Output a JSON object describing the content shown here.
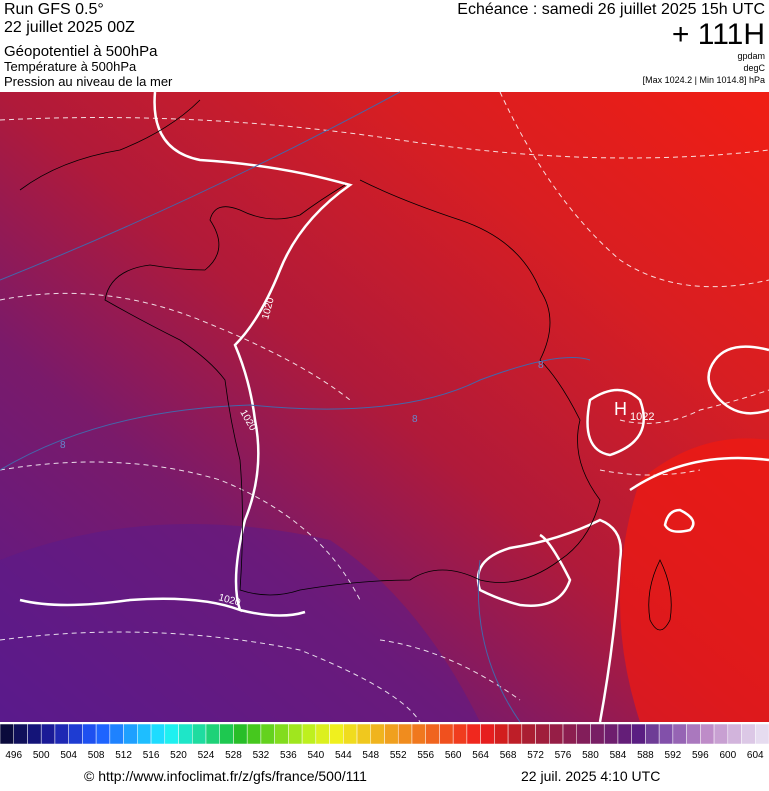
{
  "header": {
    "left": [
      "Run GFS 0.5°",
      "22 juillet 2025 00Z",
      "Géopotentiel à 500hPa",
      "Température à 500hPa",
      "Pression au niveau de la mer"
    ],
    "right_title": "Echéance : samedi 26 juillet 2025 15h UTC",
    "lead": "+ 111H",
    "units": [
      "gpdam",
      "degC",
      "[Max 1024.2 | Min 1014.8] hPa"
    ]
  },
  "map": {
    "labels": [
      "1020",
      "1020",
      "1020",
      "1022",
      "H",
      "8",
      "8",
      "8"
    ]
  },
  "colorbar": {
    "ticks": [
      496,
      500,
      504,
      508,
      512,
      516,
      520,
      524,
      528,
      532,
      536,
      540,
      544,
      548,
      552,
      556,
      560,
      564,
      568,
      572,
      576,
      580,
      584,
      588,
      592,
      596,
      600,
      604
    ],
    "colors": [
      "#0a0a3c",
      "#10105a",
      "#141478",
      "#1a1a96",
      "#1e28b4",
      "#1e3cd2",
      "#1e50f0",
      "#1e64ff",
      "#1e82ff",
      "#1ea0ff",
      "#1ebeff",
      "#1edcff",
      "#1ef0f0",
      "#1ee6c8",
      "#1edca0",
      "#1ed278",
      "#1ec850",
      "#28be28",
      "#46c81e",
      "#64d21e",
      "#82dc1e",
      "#a0e61e",
      "#bef01e",
      "#dcf01e",
      "#f0f01e",
      "#f0dc1e",
      "#f0c81e",
      "#f0b41e",
      "#f0a01e",
      "#f08c1e",
      "#f0781e",
      "#f0641e",
      "#f0501e",
      "#f03c1e",
      "#f0281e",
      "#e61e1e",
      "#d21e1e",
      "#be1e28",
      "#aa1e32",
      "#a01e3c",
      "#961e46",
      "#8c1e50",
      "#821e5a",
      "#781e64",
      "#6e1e6e",
      "#641e78",
      "#5a1e82",
      "#6e3c96",
      "#8250aa",
      "#9664b4",
      "#aa78be",
      "#be8cc8",
      "#c8a0d2",
      "#d2b4dc",
      "#dcc8e6",
      "#e6dcf0"
    ]
  },
  "footer": {
    "url": "© http://www.infoclimat.fr/z/gfs/france/500/111",
    "date": "22 juil. 2025  4:10 UTC"
  }
}
